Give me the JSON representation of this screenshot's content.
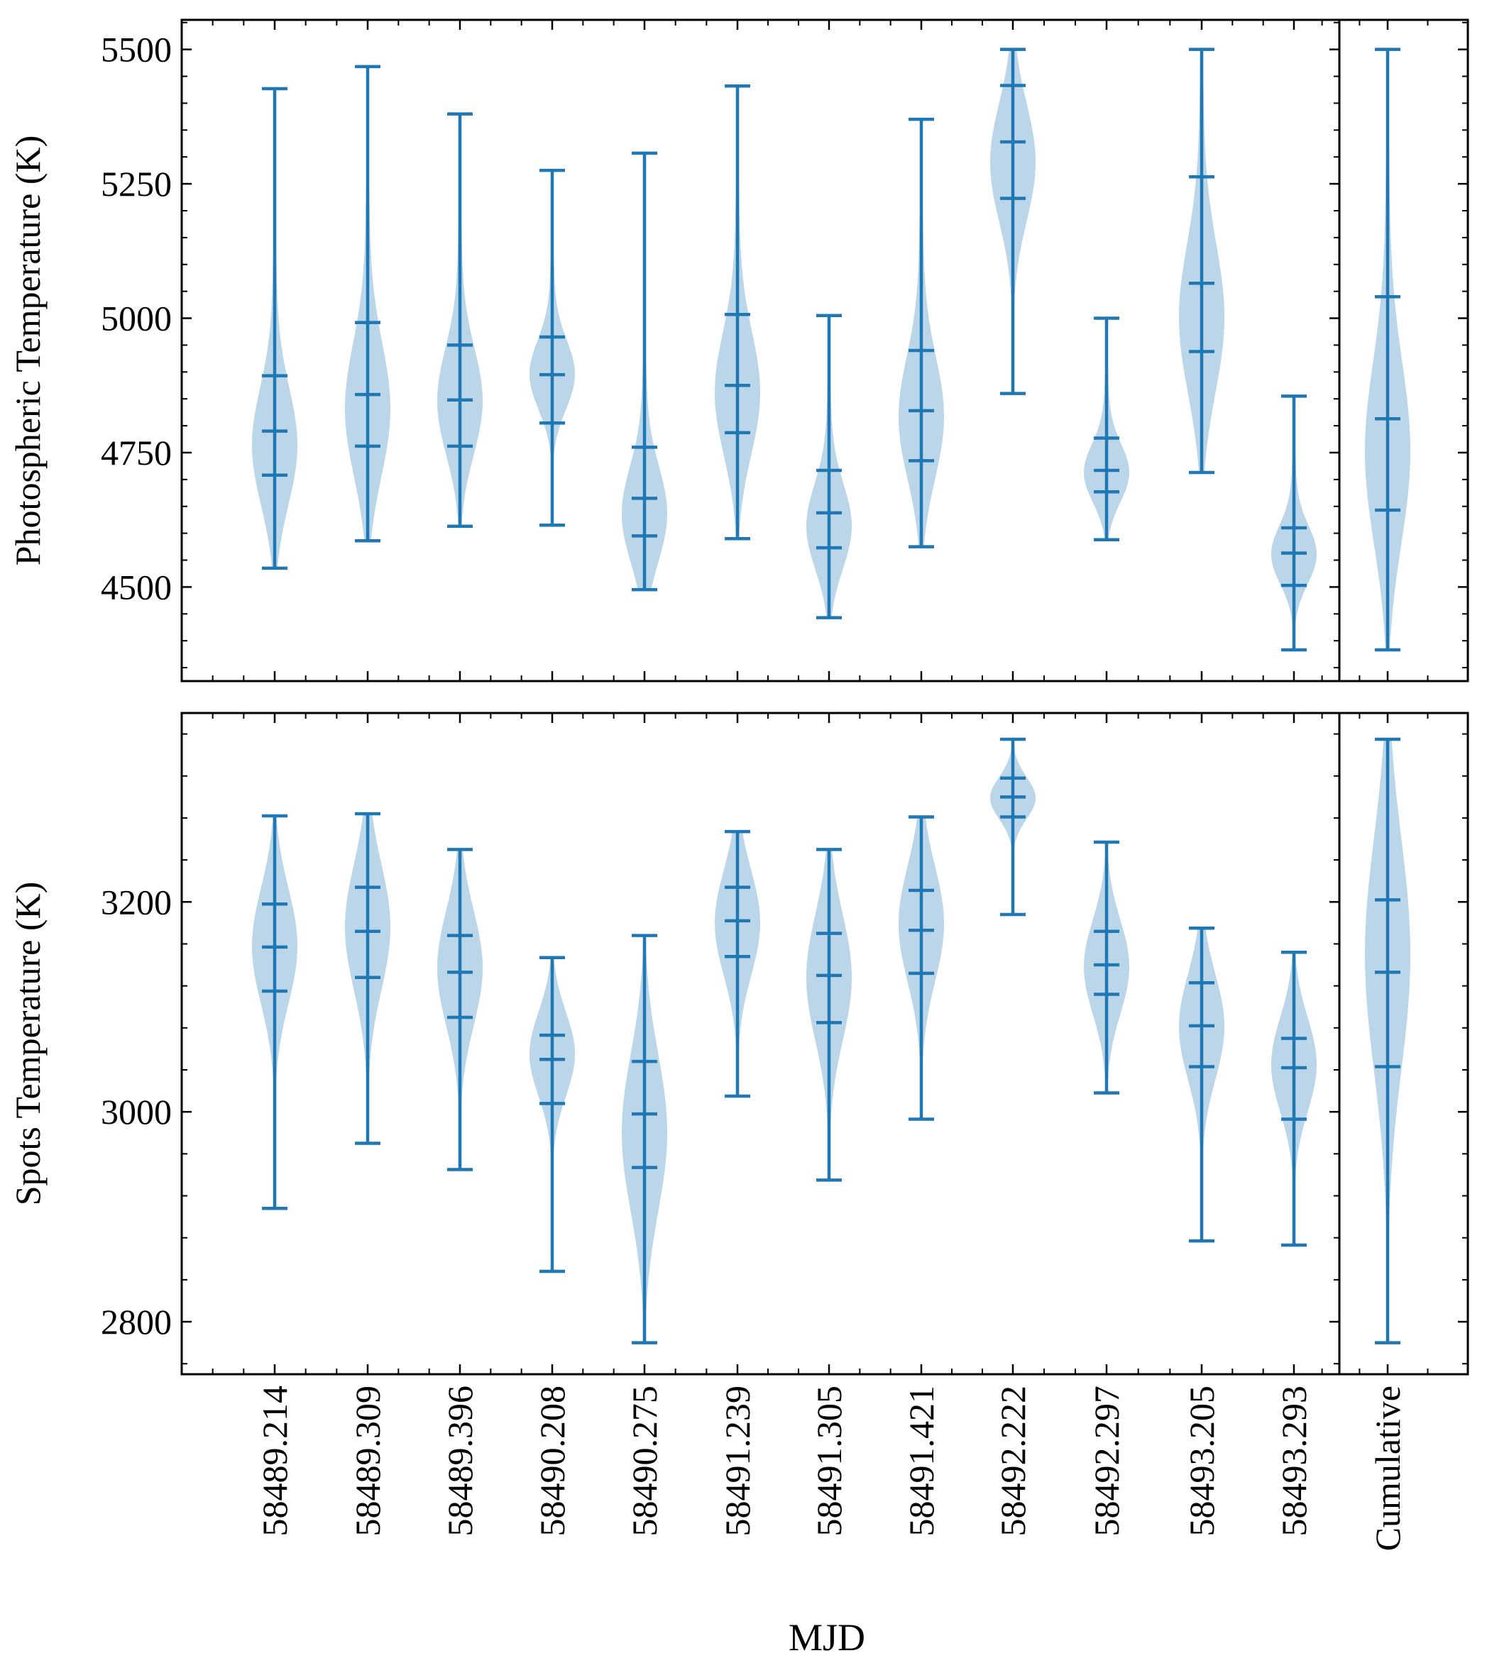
{
  "chart_data": {
    "type": "violin",
    "xlabel": "MJD",
    "categories": [
      "58489.214",
      "58489.309",
      "58489.396",
      "58490.208",
      "58490.275",
      "58491.239",
      "58491.305",
      "58491.421",
      "58492.222",
      "58492.297",
      "58493.205",
      "58493.293",
      "Cumulative"
    ],
    "colors": {
      "line": "#1f77b4",
      "fill": "#1f77b4",
      "fill_opacity": 0.3
    },
    "panels": [
      {
        "ylabel": "Photospheric Temperature (K)",
        "ylim": [
          4325,
          5555
        ],
        "yticks": [
          4500,
          4750,
          5000,
          5250,
          5500
        ],
        "ytick_labels": [
          "4500",
          "4750",
          "5000",
          "5250",
          "5500"
        ],
        "violins": [
          {
            "min": 4535,
            "q1": 4708,
            "median": 4790,
            "q3": 4893,
            "max": 5427,
            "peak": 4762,
            "spread": 110
          },
          {
            "min": 4586,
            "q1": 4762,
            "median": 4858,
            "q3": 4992,
            "max": 5468,
            "peak": 4830,
            "spread": 125
          },
          {
            "min": 4613,
            "q1": 4762,
            "median": 4848,
            "q3": 4950,
            "max": 5380,
            "peak": 4845,
            "spread": 100
          },
          {
            "min": 4615,
            "q1": 4805,
            "median": 4895,
            "q3": 4965,
            "max": 5275,
            "peak": 4895,
            "spread": 65
          },
          {
            "min": 4495,
            "q1": 4595,
            "median": 4665,
            "q3": 4760,
            "max": 5307,
            "peak": 4635,
            "spread": 90
          },
          {
            "min": 4590,
            "q1": 4787,
            "median": 4875,
            "q3": 5007,
            "max": 5432,
            "peak": 4860,
            "spread": 115
          },
          {
            "min": 4443,
            "q1": 4573,
            "median": 4638,
            "q3": 4717,
            "max": 5005,
            "peak": 4612,
            "spread": 80
          },
          {
            "min": 4575,
            "q1": 4735,
            "median": 4828,
            "q3": 4940,
            "max": 5370,
            "peak": 4815,
            "spread": 115
          },
          {
            "min": 4860,
            "q1": 5223,
            "median": 5328,
            "q3": 5433,
            "max": 5500,
            "peak": 5290,
            "spread": 110
          },
          {
            "min": 4588,
            "q1": 4677,
            "median": 4717,
            "q3": 4777,
            "max": 5000,
            "peak": 4712,
            "spread": 55
          },
          {
            "min": 4713,
            "q1": 4938,
            "median": 5065,
            "q3": 5263,
            "max": 5500,
            "peak": 5000,
            "spread": 140
          },
          {
            "min": 4383,
            "q1": 4503,
            "median": 4563,
            "q3": 4610,
            "max": 4855,
            "peak": 4560,
            "spread": 55
          },
          {
            "min": 4383,
            "q1": 4643,
            "median": 4813,
            "q3": 5040,
            "max": 5500,
            "peak": 4750,
            "spread": 170
          }
        ]
      },
      {
        "ylabel": "Spots Temperature (K)",
        "ylim": [
          2750,
          3380
        ],
        "yticks": [
          2800,
          3000,
          3200
        ],
        "ytick_labels": [
          "2800",
          "3000",
          "3200"
        ],
        "violins": [
          {
            "min": 2908,
            "q1": 3115,
            "median": 3157,
            "q3": 3198,
            "max": 3282,
            "peak": 3158,
            "spread": 55
          },
          {
            "min": 2970,
            "q1": 3128,
            "median": 3172,
            "q3": 3214,
            "max": 3284,
            "peak": 3176,
            "spread": 60
          },
          {
            "min": 2945,
            "q1": 3090,
            "median": 3133,
            "q3": 3168,
            "max": 3250,
            "peak": 3137,
            "spread": 55
          },
          {
            "min": 2848,
            "q1": 3008,
            "median": 3050,
            "q3": 3073,
            "max": 3147,
            "peak": 3055,
            "spread": 40
          },
          {
            "min": 2780,
            "q1": 2947,
            "median": 2998,
            "q3": 3048,
            "max": 3168,
            "peak": 2980,
            "spread": 75
          },
          {
            "min": 3015,
            "q1": 3148,
            "median": 3182,
            "q3": 3214,
            "max": 3267,
            "peak": 3180,
            "spread": 50
          },
          {
            "min": 2935,
            "q1": 3085,
            "median": 3130,
            "q3": 3170,
            "max": 3250,
            "peak": 3128,
            "spread": 60
          },
          {
            "min": 2993,
            "q1": 3132,
            "median": 3173,
            "q3": 3211,
            "max": 3281,
            "peak": 3179,
            "spread": 55
          },
          {
            "min": 3188,
            "q1": 3281,
            "median": 3300,
            "q3": 3318,
            "max": 3355,
            "peak": 3299,
            "spread": 20
          },
          {
            "min": 3018,
            "q1": 3112,
            "median": 3140,
            "q3": 3172,
            "max": 3257,
            "peak": 3138,
            "spread": 45
          },
          {
            "min": 2877,
            "q1": 3043,
            "median": 3082,
            "q3": 3123,
            "max": 3175,
            "peak": 3081,
            "spread": 50
          },
          {
            "min": 2873,
            "q1": 2993,
            "median": 3042,
            "q3": 3070,
            "max": 3152,
            "peak": 3045,
            "spread": 45
          },
          {
            "min": 2780,
            "q1": 3043,
            "median": 3133,
            "q3": 3202,
            "max": 3355,
            "peak": 3150,
            "spread": 110
          }
        ]
      }
    ]
  }
}
